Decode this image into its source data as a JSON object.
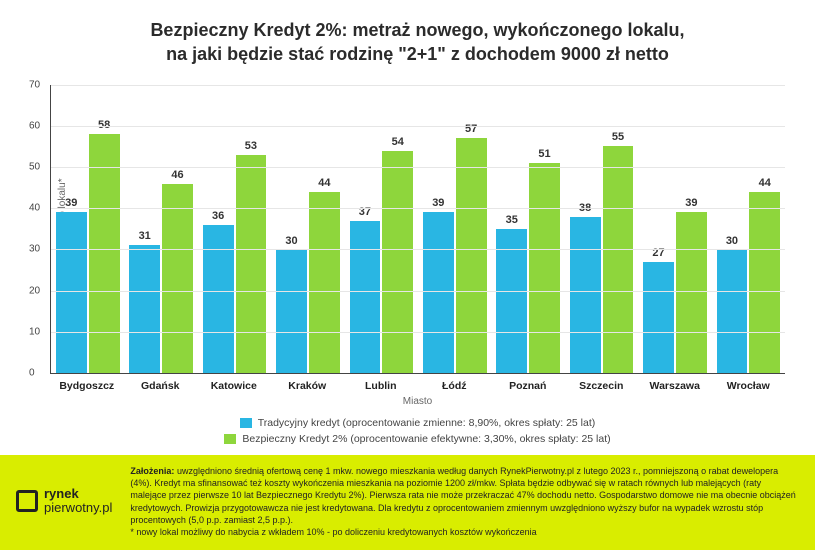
{
  "chart": {
    "type": "bar",
    "title_line1": "Bezpieczny Kredyt 2%: metraż nowego, wykończonego lokalu,",
    "title_line2": "na jaki będzie stać rodzinę \"2+1\" z dochodem 9000 zł netto",
    "title_fontsize": 18,
    "y_axis_label": "Metraż nowego lokalu*",
    "x_axis_label": "Miasto",
    "ylim_max": 70,
    "ytick_step": 10,
    "background_color": "#ffffff",
    "grid_color": "#e6e6e6",
    "axis_color": "#444444",
    "categories": [
      "Bydgoszcz",
      "Gdańsk",
      "Katowice",
      "Kraków",
      "Lublin",
      "Łódź",
      "Poznań",
      "Szczecin",
      "Warszawa",
      "Wrocław"
    ],
    "series": [
      {
        "name": "Tradycyjny kredyt (oprocentowanie zmienne: 8,90%, okres spłaty: 25 lat)",
        "color": "#29b6e3",
        "values": [
          39,
          31,
          36,
          30,
          37,
          39,
          35,
          38,
          27,
          30
        ]
      },
      {
        "name": "Bezpieczny Kredyt 2% (oprocentowanie efektywne: 3,30%, okres spłaty: 25 lat)",
        "color": "#8ed63c",
        "values": [
          58,
          46,
          53,
          44,
          54,
          57,
          51,
          55,
          39,
          44
        ]
      }
    ],
    "bar_label_fontsize": 11,
    "xtick_fontsize": 10.5,
    "legend_fontsize": 10.5
  },
  "footer": {
    "background_color": "#d9ed00",
    "logo_brand_bold": "rynek",
    "logo_brand_rest": "pierwotny.pl",
    "assumptions_label": "Założenia:",
    "assumptions_body": "uwzględniono średnią ofertową cenę 1 mkw. nowego mieszkania według danych RynekPierwotny.pl z lutego 2023 r., pomniejszoną o rabat dewelopera (4%). Kredyt ma sfinansować też koszty wykończenia mieszkania na poziomie 1200 zł/mkw. Spłata będzie odbywać się w ratach równych lub malejących (raty malejące przez pierwsze 10 lat Bezpiecznego Kredytu 2%). Pierwsza rata nie może przekraczać 47% dochodu netto. Gospodarstwo domowe nie ma obecnie obciążeń kredytowych. Prowizja przygotowawcza nie jest kredytowana. Dla kredytu z oprocentowaniem zmiennym uwzględniono wyższy bufor na wypadek wzrostu stóp procentowych (5,0 p.p. zamiast 2,5 p.p.).",
    "footnote": "* nowy lokal możliwy do nabycia z wkładem 10% - po doliczeniu kredytowanych kosztów wykończenia"
  }
}
